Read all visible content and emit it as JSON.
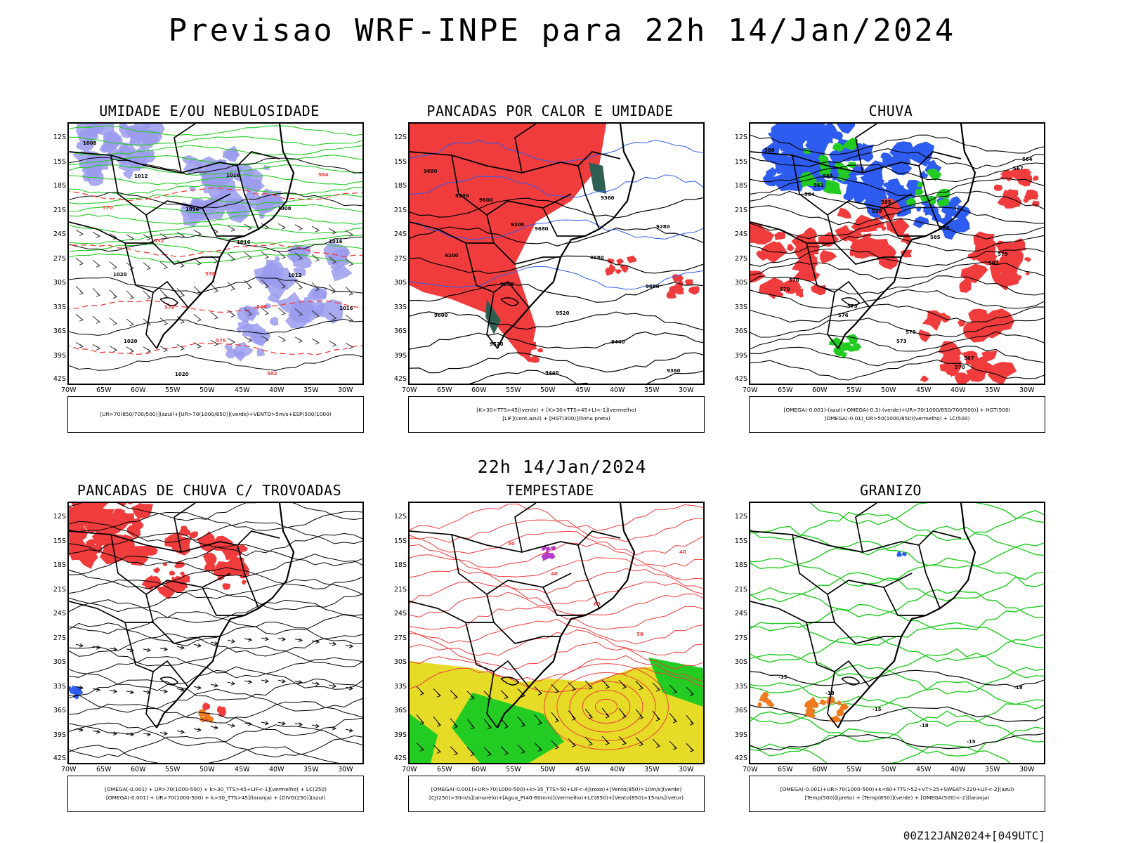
{
  "title": "Previsao WRF-INPE  para 22h 14/Jan/2024",
  "mid_title": "22h 14/Jan/2024",
  "footer": "00Z12JAN2024+[049UTC]",
  "lat_labels": [
    "12S",
    "15S",
    "18S",
    "21S",
    "24S",
    "27S",
    "30S",
    "33S",
    "36S",
    "39S",
    "42S"
  ],
  "lon_labels": [
    "70W",
    "65W",
    "60W",
    "55W",
    "50W",
    "45W",
    "40W",
    "35W",
    "30W"
  ],
  "colors": {
    "umidade_azul": "#9b9bef",
    "verde": "#22cc22",
    "vermelho": "#f03c3c",
    "amarelo": "#e6dc28",
    "azul": "#2e5cf0",
    "laranja": "#f07a1e",
    "roxo": "#b43cc8",
    "teal": "#2f5f52"
  },
  "panels": [
    {
      "title": "UMIDADE E/OU NEBULOSIDADE",
      "legend": [
        "[UR>70(850/700/500)](azul)+[UR>70(1000/850)](verde)+VENTO>5m/s+ESP(500/1000)"
      ],
      "contour_labels": [
        "1008",
        "1012",
        "1016",
        "1016",
        "1012",
        "1016",
        "1020",
        "1020",
        "1016",
        "1008",
        "1016",
        "1020",
        "570",
        "576",
        "582",
        "564",
        "570",
        "552",
        "558",
        "546"
      ]
    },
    {
      "title": "PANCADAS POR CALOR E UMIDADE",
      "legend": [
        "[K>30+TTS>45](verde) + [K>30+TTS>45+LI<-1](vermelho)",
        "[LIF](cont.azul) + [HGT(300)](linha preta)"
      ],
      "contour_labels": [
        "9680",
        "9600",
        "9680",
        "9680",
        "9680",
        "9600",
        "9520",
        "9440",
        "9360",
        "9280",
        "9200",
        "9600",
        "9520",
        "9440",
        "9360",
        "9280",
        "9200"
      ]
    },
    {
      "title": "CHUVA",
      "legend": [
        "[OMEGA(-0.001)-(azul)+OMEGA(-0.3)-(verde)+UR>70(1000/850/700/500)] + HGT(500)",
        "[OMEGA(-0.01)_UR>50(1000/850)(vermelho) + LC(500)"
      ],
      "contour_labels": [
        "588",
        "585",
        "585",
        "582",
        "579",
        "576",
        "573",
        "570",
        "567",
        "564",
        "561",
        "558",
        "585",
        "582",
        "579",
        "576",
        "573",
        "570",
        "567",
        "564"
      ]
    },
    {
      "title": "PANCADAS DE CHUVA C/ TROVOADAS",
      "legend": [
        "[OMEGA(-0.001) + UR>70(1000-500) + k>30_TTS>45+LIF<-1](vermelho) + LC(250)",
        "[OMEGA(-0.001) + UR>70(1000-500) + k>30_TTS>45](laranja) + [DIVG(250)](azul)"
      ],
      "contour_labels": []
    },
    {
      "title": "TEMPESTADE",
      "legend": [
        "[OMEGA(-0.001)+UR>70(1000-500)+k>35_TTS>50+LIF<-4](roxo)+[Vento(850)>10m/s](verde)",
        "[CJ(250)>30m/s](amarelo)+[Agua_P(40-60mm)](vermelho)+LC(850)+[Vento(850)>15m/s](vetor)"
      ],
      "contour_labels": [
        "50",
        "40",
        "60",
        "50",
        "40"
      ]
    },
    {
      "title": "GRANIZO",
      "legend": [
        "[OMEGA(-0.001)+UR>70(1000-500)+k<60+TTS>52+VT>25+SWEAT>220+LIF<-2](azul)",
        "[Temp(500)](preto) + [Temp(850)](verde) + [OMEGA(500)<-2](laranja)"
      ],
      "contour_labels": [
        "-15",
        "-18",
        "-15",
        "-18",
        "-15",
        "-18"
      ]
    }
  ]
}
